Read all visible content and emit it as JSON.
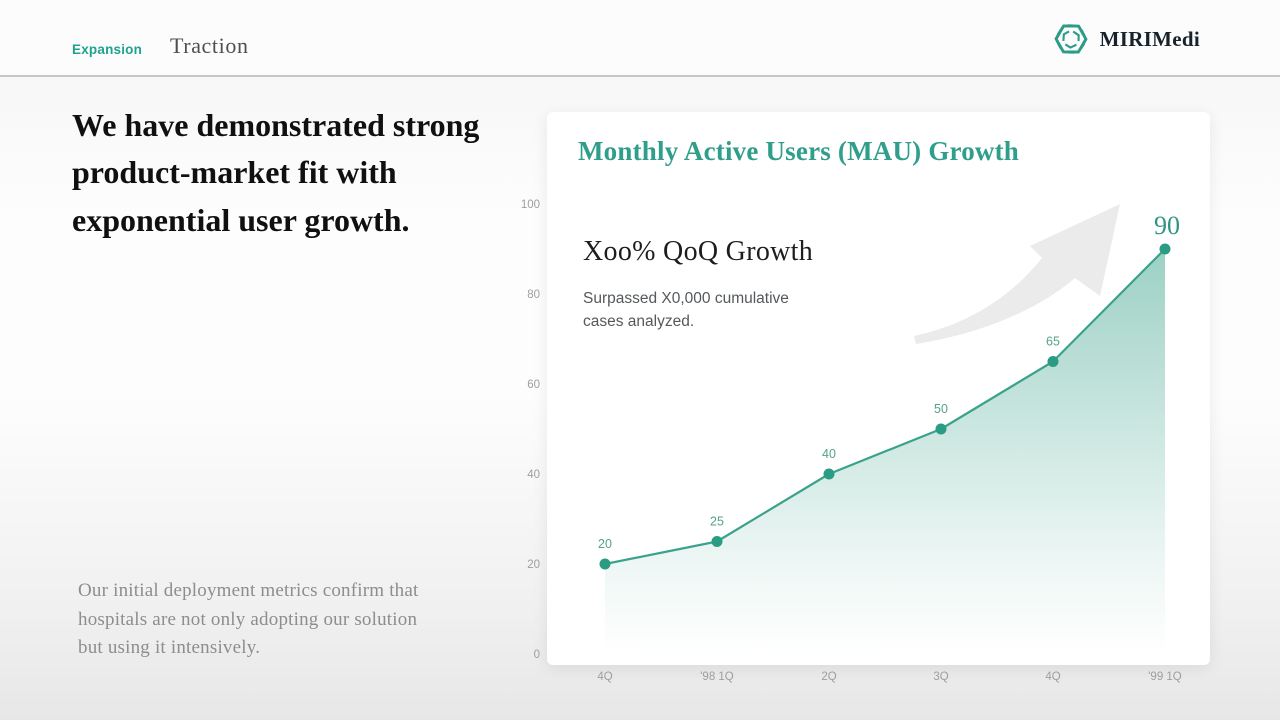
{
  "header": {
    "section": "Expansion",
    "title": "Traction",
    "brand": "MIRIMedi"
  },
  "main": {
    "headline": "We have demonstrated strong product-market fit with exponential user growth.",
    "note": "Our initial deployment metrics confirm that hospitals are not only adopting our solution but using it intensively."
  },
  "chart_card": {
    "title": "Monthly Active Users (MAU) Growth",
    "callout_title": "Xoo% QoQ Growth",
    "callout_sub": "Surpassed X0,000 cumulative cases analyzed."
  },
  "colors": {
    "accent_teal": "#2f9e8b",
    "line": "#3aa28a",
    "dot": "#2a9c83",
    "point_label": "#55a28c",
    "highlight_label": "#2e9484",
    "axis_label": "#9b9fa2",
    "arrow": "#ebebec"
  },
  "chart_data": {
    "type": "area",
    "title": "Monthly Active Users (MAU) Growth",
    "categories": [
      "4Q",
      "'98 1Q",
      "2Q",
      "3Q",
      "4Q",
      "'99 1Q"
    ],
    "values": [
      20,
      25,
      40,
      50,
      65,
      90
    ],
    "xlabel": "",
    "ylabel": "",
    "ylim": [
      0,
      100
    ],
    "yticks": [
      0,
      20,
      40,
      60,
      80,
      100
    ],
    "grid": false,
    "legend": false,
    "highlight_last": true,
    "annotations": [
      "Xoo% QoQ Growth",
      "Surpassed X0,000 cumulative cases analyzed."
    ]
  }
}
